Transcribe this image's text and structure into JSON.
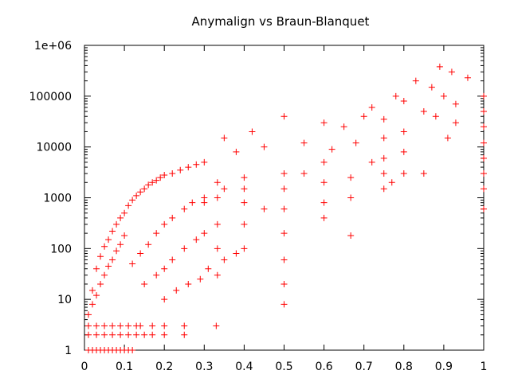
{
  "chart_data": {
    "type": "scatter",
    "title": "Anymalign vs Braun-Blanquet",
    "xlabel": "",
    "ylabel": "",
    "xlim": [
      0,
      1
    ],
    "ylim": [
      1,
      1000000
    ],
    "yscale": "log",
    "x_ticks": [
      0,
      0.1,
      0.2,
      0.3,
      0.4,
      0.5,
      0.6,
      0.7,
      0.8,
      0.9,
      1
    ],
    "x_tick_labels": [
      "0",
      "0.1",
      "0.2",
      "0.3",
      "0.4",
      "0.5",
      "0.6",
      "0.7",
      "0.8",
      "0.9",
      "1"
    ],
    "y_ticks": [
      1,
      10,
      100,
      1000,
      10000,
      100000,
      1000000
    ],
    "y_tick_labels": [
      "1",
      "10",
      "100",
      "1000",
      "10000",
      "100000",
      "1e+06"
    ],
    "grid": false,
    "marker": "plus",
    "marker_color": "#ff0000",
    "series": [
      {
        "points": [
          [
            0.01,
            1
          ],
          [
            0.02,
            1
          ],
          [
            0.03,
            1
          ],
          [
            0.04,
            1
          ],
          [
            0.05,
            1
          ],
          [
            0.06,
            1
          ],
          [
            0.07,
            1
          ],
          [
            0.08,
            1
          ],
          [
            0.09,
            1
          ],
          [
            0.1,
            1
          ],
          [
            0.11,
            1
          ],
          [
            0.12,
            1
          ],
          [
            0.01,
            2
          ],
          [
            0.03,
            2
          ],
          [
            0.05,
            2
          ],
          [
            0.07,
            2
          ],
          [
            0.09,
            2
          ],
          [
            0.11,
            2
          ],
          [
            0.13,
            2
          ],
          [
            0.15,
            2
          ],
          [
            0.17,
            2
          ],
          [
            0.2,
            2
          ],
          [
            0.25,
            2
          ],
          [
            0.01,
            3
          ],
          [
            0.03,
            3
          ],
          [
            0.05,
            3
          ],
          [
            0.07,
            3
          ],
          [
            0.09,
            3
          ],
          [
            0.11,
            3
          ],
          [
            0.13,
            3
          ],
          [
            0.14,
            3
          ],
          [
            0.17,
            3
          ],
          [
            0.2,
            3
          ],
          [
            0.25,
            3
          ],
          [
            0.33,
            3
          ],
          [
            0.01,
            5
          ],
          [
            0.02,
            8
          ],
          [
            0.03,
            12
          ],
          [
            0.04,
            20
          ],
          [
            0.05,
            30
          ],
          [
            0.06,
            45
          ],
          [
            0.07,
            60
          ],
          [
            0.08,
            90
          ],
          [
            0.09,
            120
          ],
          [
            0.1,
            180
          ],
          [
            0.02,
            15
          ],
          [
            0.03,
            40
          ],
          [
            0.04,
            70
          ],
          [
            0.05,
            110
          ],
          [
            0.06,
            150
          ],
          [
            0.07,
            220
          ],
          [
            0.08,
            300
          ],
          [
            0.09,
            400
          ],
          [
            0.1,
            500
          ],
          [
            0.11,
            700
          ],
          [
            0.12,
            900
          ],
          [
            0.13,
            1100
          ],
          [
            0.14,
            1300
          ],
          [
            0.15,
            1500
          ],
          [
            0.16,
            1800
          ],
          [
            0.17,
            2000
          ],
          [
            0.18,
            2200
          ],
          [
            0.19,
            2500
          ],
          [
            0.2,
            2800
          ],
          [
            0.22,
            3000
          ],
          [
            0.24,
            3500
          ],
          [
            0.26,
            4000
          ],
          [
            0.28,
            4500
          ],
          [
            0.3,
            5000
          ],
          [
            0.12,
            50
          ],
          [
            0.14,
            80
          ],
          [
            0.16,
            120
          ],
          [
            0.18,
            200
          ],
          [
            0.2,
            300
          ],
          [
            0.22,
            400
          ],
          [
            0.25,
            600
          ],
          [
            0.27,
            800
          ],
          [
            0.3,
            1000
          ],
          [
            0.15,
            20
          ],
          [
            0.18,
            30
          ],
          [
            0.2,
            40
          ],
          [
            0.22,
            60
          ],
          [
            0.25,
            100
          ],
          [
            0.28,
            150
          ],
          [
            0.3,
            200
          ],
          [
            0.2,
            10
          ],
          [
            0.23,
            15
          ],
          [
            0.26,
            20
          ],
          [
            0.29,
            25
          ],
          [
            0.31,
            40
          ],
          [
            0.35,
            60
          ],
          [
            0.38,
            80
          ],
          [
            0.333,
            30
          ],
          [
            0.333,
            100
          ],
          [
            0.333,
            300
          ],
          [
            0.333,
            1000
          ],
          [
            0.333,
            2000
          ],
          [
            0.4,
            100
          ],
          [
            0.4,
            300
          ],
          [
            0.4,
            800
          ],
          [
            0.4,
            1500
          ],
          [
            0.4,
            2500
          ],
          [
            0.5,
            8
          ],
          [
            0.5,
            20
          ],
          [
            0.5,
            60
          ],
          [
            0.5,
            200
          ],
          [
            0.5,
            600
          ],
          [
            0.5,
            1500
          ],
          [
            0.5,
            3000
          ],
          [
            0.6,
            400
          ],
          [
            0.6,
            800
          ],
          [
            0.6,
            2000
          ],
          [
            0.6,
            5000
          ],
          [
            0.667,
            180
          ],
          [
            0.667,
            1000
          ],
          [
            0.667,
            2500
          ],
          [
            0.75,
            1500
          ],
          [
            0.75,
            3000
          ],
          [
            0.75,
            6000
          ],
          [
            0.75,
            15000
          ],
          [
            0.8,
            3000
          ],
          [
            0.8,
            8000
          ],
          [
            0.8,
            20000
          ],
          [
            0.35,
            15000
          ],
          [
            0.38,
            8000
          ],
          [
            0.42,
            20000
          ],
          [
            0.45,
            10000
          ],
          [
            0.5,
            40000
          ],
          [
            0.55,
            12000
          ],
          [
            0.6,
            30000
          ],
          [
            0.65,
            25000
          ],
          [
            0.7,
            40000
          ],
          [
            0.72,
            60000
          ],
          [
            0.75,
            35000
          ],
          [
            0.78,
            100000
          ],
          [
            0.8,
            80000
          ],
          [
            0.83,
            200000
          ],
          [
            0.85,
            50000
          ],
          [
            0.87,
            150000
          ],
          [
            0.89,
            380000
          ],
          [
            0.9,
            100000
          ],
          [
            0.92,
            300000
          ],
          [
            0.93,
            70000
          ],
          [
            0.96,
            230000
          ],
          [
            0.3,
            800
          ],
          [
            0.35,
            1500
          ],
          [
            0.45,
            600
          ],
          [
            0.55,
            3000
          ],
          [
            0.62,
            9000
          ],
          [
            0.68,
            12000
          ],
          [
            0.72,
            5000
          ],
          [
            0.77,
            2000
          ],
          [
            0.85,
            3000
          ],
          [
            0.88,
            40000
          ],
          [
            0.91,
            15000
          ],
          [
            0.93,
            30000
          ],
          [
            1,
            600
          ],
          [
            1,
            1500
          ],
          [
            1,
            3000
          ],
          [
            1,
            6000
          ],
          [
            1,
            12000
          ],
          [
            1,
            25000
          ],
          [
            1,
            50000
          ],
          [
            1,
            100000
          ]
        ]
      }
    ]
  }
}
